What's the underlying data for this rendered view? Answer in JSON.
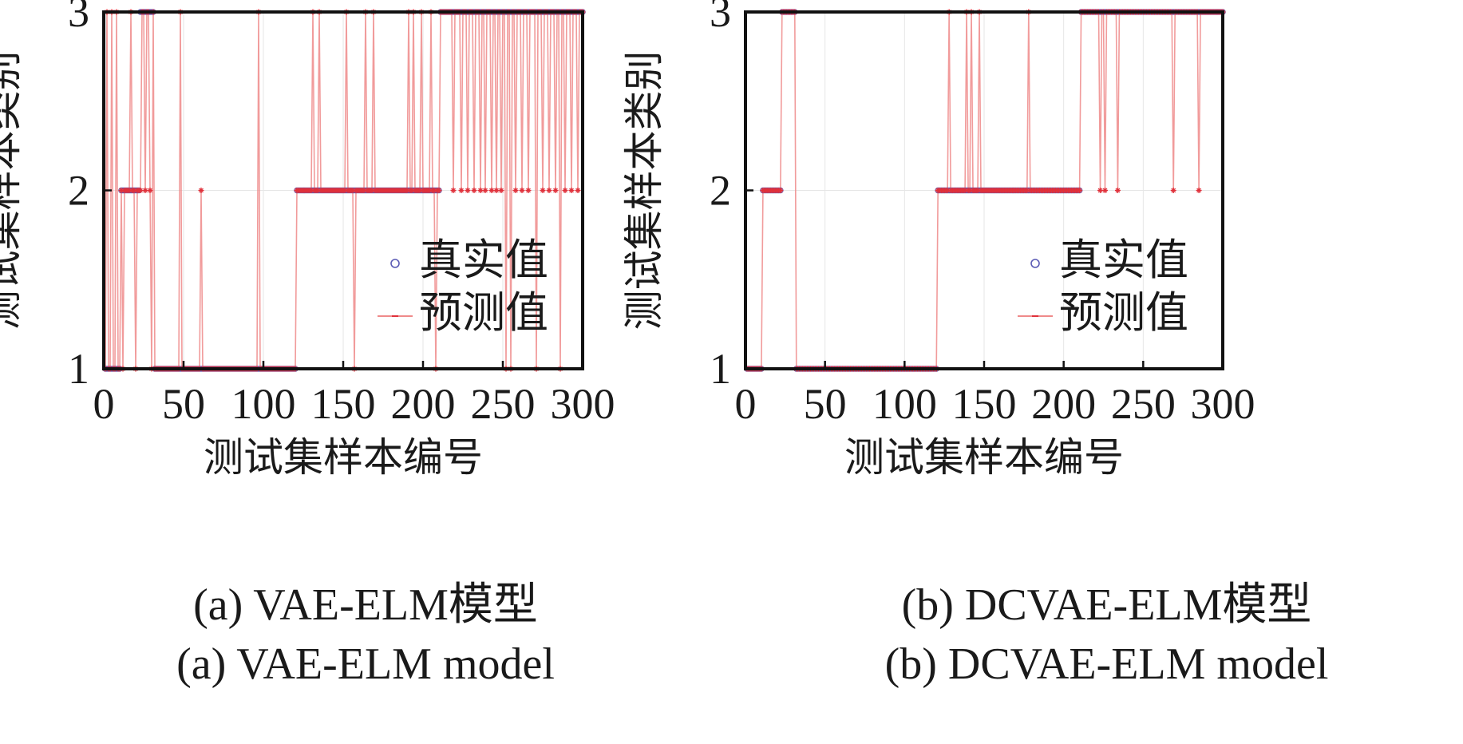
{
  "figure": {
    "panels": [
      {
        "id": "a",
        "caption_zh": "(a)  VAE-ELM模型",
        "caption_en": "(a)  VAE-ELM model"
      },
      {
        "id": "b",
        "caption_zh": "(b)  DCVAE-ELM模型",
        "caption_en": "(b)  DCVAE-ELM model"
      }
    ]
  },
  "colors": {
    "true_marker": "#5b5bb5",
    "pred_line": "#ef8a8a",
    "pred_marker": "#e0303a",
    "axis": "#111111",
    "grid": "#e6e6e6"
  },
  "chart_data": [
    {
      "type": "scatter",
      "xlabel": "测试集样本编号",
      "ylabel": "测试集样本类别",
      "xlim": [
        0,
        300
      ],
      "ylim": [
        1,
        3
      ],
      "xticks": [
        0,
        50,
        100,
        150,
        200,
        250,
        300
      ],
      "yticks": [
        1,
        2,
        3
      ],
      "grid": true,
      "legend_position": "lower-right",
      "legend": [
        "真实值",
        "预测值"
      ],
      "true_segments": [
        {
          "x_from": 1,
          "x_to": 10,
          "value": 1
        },
        {
          "x_from": 11,
          "x_to": 22,
          "value": 2
        },
        {
          "x_from": 23,
          "x_to": 31,
          "value": 3
        },
        {
          "x_from": 32,
          "x_to": 120,
          "value": 1
        },
        {
          "x_from": 121,
          "x_to": 210,
          "value": 2
        },
        {
          "x_from": 211,
          "x_to": 300,
          "value": 3
        }
      ],
      "pred_errors": [
        {
          "x": 2,
          "value": 3
        },
        {
          "x": 5,
          "value": 3
        },
        {
          "x": 8,
          "value": 3
        },
        {
          "x": 12,
          "value": 1
        },
        {
          "x": 17,
          "value": 3
        },
        {
          "x": 20,
          "value": 1
        },
        {
          "x": 23,
          "value": 2
        },
        {
          "x": 26,
          "value": 2
        },
        {
          "x": 29,
          "value": 2
        },
        {
          "x": 30,
          "value": 1
        },
        {
          "x": 48,
          "value": 3
        },
        {
          "x": 61,
          "value": 2
        },
        {
          "x": 97,
          "value": 3
        },
        {
          "x": 131,
          "value": 3
        },
        {
          "x": 135,
          "value": 3
        },
        {
          "x": 152,
          "value": 3
        },
        {
          "x": 157,
          "value": 1
        },
        {
          "x": 164,
          "value": 3
        },
        {
          "x": 169,
          "value": 3
        },
        {
          "x": 191,
          "value": 3
        },
        {
          "x": 194,
          "value": 3
        },
        {
          "x": 199,
          "value": 3
        },
        {
          "x": 205,
          "value": 3
        },
        {
          "x": 208,
          "value": 1
        },
        {
          "x": 219,
          "value": 2
        },
        {
          "x": 224,
          "value": 2
        },
        {
          "x": 228,
          "value": 2
        },
        {
          "x": 232,
          "value": 2
        },
        {
          "x": 236,
          "value": 2
        },
        {
          "x": 239,
          "value": 2
        },
        {
          "x": 243,
          "value": 2
        },
        {
          "x": 246,
          "value": 2
        },
        {
          "x": 249,
          "value": 2
        },
        {
          "x": 252,
          "value": 1
        },
        {
          "x": 255,
          "value": 1
        },
        {
          "x": 258,
          "value": 2
        },
        {
          "x": 262,
          "value": 2
        },
        {
          "x": 266,
          "value": 2
        },
        {
          "x": 271,
          "value": 1
        },
        {
          "x": 275,
          "value": 2
        },
        {
          "x": 279,
          "value": 2
        },
        {
          "x": 283,
          "value": 2
        },
        {
          "x": 286,
          "value": 1
        },
        {
          "x": 289,
          "value": 2
        },
        {
          "x": 293,
          "value": 2
        },
        {
          "x": 297,
          "value": 2
        }
      ]
    },
    {
      "type": "scatter",
      "xlabel": "测试集样本编号",
      "ylabel": "测试集样本类别",
      "xlim": [
        0,
        300
      ],
      "ylim": [
        1,
        3
      ],
      "xticks": [
        0,
        50,
        100,
        150,
        200,
        250,
        300
      ],
      "yticks": [
        1,
        2,
        3
      ],
      "grid": true,
      "legend_position": "lower-right",
      "legend": [
        "真实值",
        "预测值"
      ],
      "true_segments": [
        {
          "x_from": 1,
          "x_to": 10,
          "value": 1
        },
        {
          "x_from": 11,
          "x_to": 22,
          "value": 2
        },
        {
          "x_from": 23,
          "x_to": 31,
          "value": 3
        },
        {
          "x_from": 32,
          "x_to": 120,
          "value": 1
        },
        {
          "x_from": 121,
          "x_to": 210,
          "value": 2
        },
        {
          "x_from": 211,
          "x_to": 300,
          "value": 3
        }
      ],
      "pred_errors": [
        {
          "x": 128,
          "value": 3
        },
        {
          "x": 139,
          "value": 3
        },
        {
          "x": 142,
          "value": 3
        },
        {
          "x": 147,
          "value": 3
        },
        {
          "x": 178,
          "value": 3
        },
        {
          "x": 223,
          "value": 2
        },
        {
          "x": 226,
          "value": 2
        },
        {
          "x": 234,
          "value": 2
        },
        {
          "x": 269,
          "value": 2
        },
        {
          "x": 285,
          "value": 2
        }
      ]
    }
  ]
}
